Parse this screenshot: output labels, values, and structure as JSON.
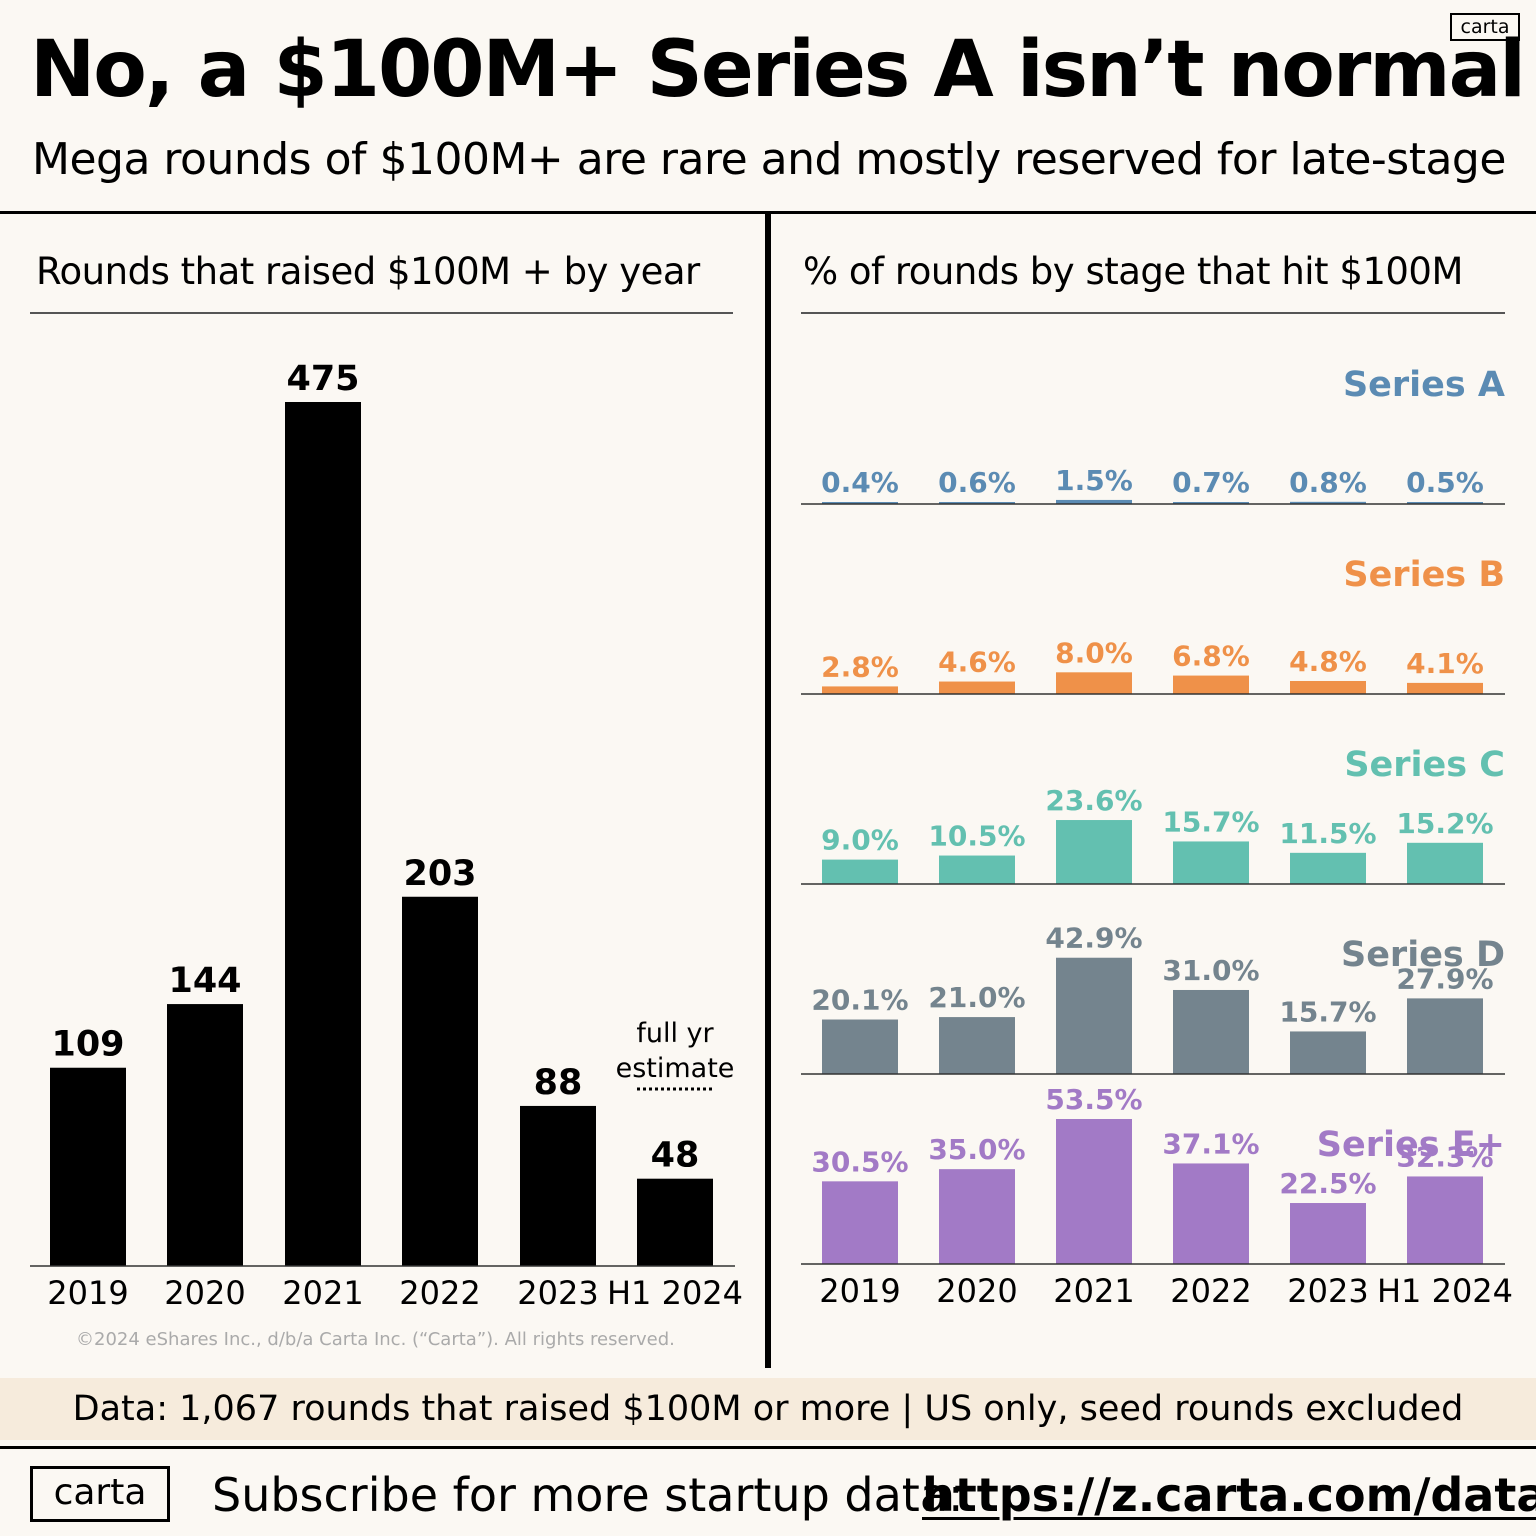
{
  "header": {
    "title": "No, a $100M+ Series A isn’t normal",
    "subtitle": "Mega rounds of $100M+ are rare and mostly reserved for late-stage",
    "logo": "carta"
  },
  "left_panel": {
    "title": "Rounds that raised $100M + by year"
  },
  "right_panel": {
    "title": "% of rounds by stage that hit $100M"
  },
  "chart_data": [
    {
      "type": "bar",
      "title": "Rounds that raised $100M + by year",
      "categories": [
        "2019",
        "2020",
        "2021",
        "2022",
        "2023",
        "H1 2024"
      ],
      "values": [
        109,
        144,
        475,
        203,
        88,
        48
      ],
      "labels": [
        "109",
        "144",
        "475",
        "203",
        "88",
        "48"
      ],
      "annotation": {
        "line1": "full yr",
        "line2": "estimate"
      },
      "color": "#000000",
      "ylim": [
        0,
        475
      ]
    },
    {
      "type": "bar",
      "title": "% of rounds by stage that hit $100M",
      "categories": [
        "2019",
        "2020",
        "2021",
        "2022",
        "2023",
        "H1 2024"
      ],
      "ylim": [
        0,
        53.5
      ],
      "series": [
        {
          "name": "Series A",
          "color": "#5b8bb3",
          "values": [
            0.4,
            0.6,
            1.5,
            0.7,
            0.8,
            0.5
          ],
          "labels": [
            "0.4%",
            "0.6%",
            "1.5%",
            "0.7%",
            "0.8%",
            "0.5%"
          ]
        },
        {
          "name": "Series B",
          "color": "#ef9149",
          "values": [
            2.8,
            4.6,
            8.0,
            6.8,
            4.8,
            4.1
          ],
          "labels": [
            "2.8%",
            "4.6%",
            "8.0%",
            "6.8%",
            "4.8%",
            "4.1%"
          ]
        },
        {
          "name": "Series C",
          "color": "#63c0b0",
          "values": [
            9.0,
            10.5,
            23.6,
            15.7,
            11.5,
            15.2
          ],
          "labels": [
            "9.0%",
            "10.5%",
            "23.6%",
            "15.7%",
            "11.5%",
            "15.2%"
          ]
        },
        {
          "name": "Series D",
          "color": "#74848e",
          "values": [
            20.1,
            21.0,
            42.9,
            31.0,
            15.7,
            27.9
          ],
          "labels": [
            "20.1%",
            "21.0%",
            "42.9%",
            "31.0%",
            "15.7%",
            "27.9%"
          ]
        },
        {
          "name": "Series E+",
          "color": "#a27ac6",
          "values": [
            30.5,
            35.0,
            53.5,
            37.1,
            22.5,
            32.3
          ],
          "labels": [
            "30.5%",
            "35.0%",
            "53.5%",
            "37.1%",
            "22.5%",
            "32.3%"
          ]
        }
      ]
    }
  ],
  "footer": {
    "copyright": "©2024 eShares Inc., d/b/a Carta Inc. (“Carta”). All rights reserved.",
    "data_note": "Data: 1,067 rounds that raised $100M or more | US only, seed rounds excluded",
    "logo": "carta",
    "subscribe_text": "Subscribe for more startup data:",
    "subscribe_url": "https://z.carta.com/data"
  }
}
